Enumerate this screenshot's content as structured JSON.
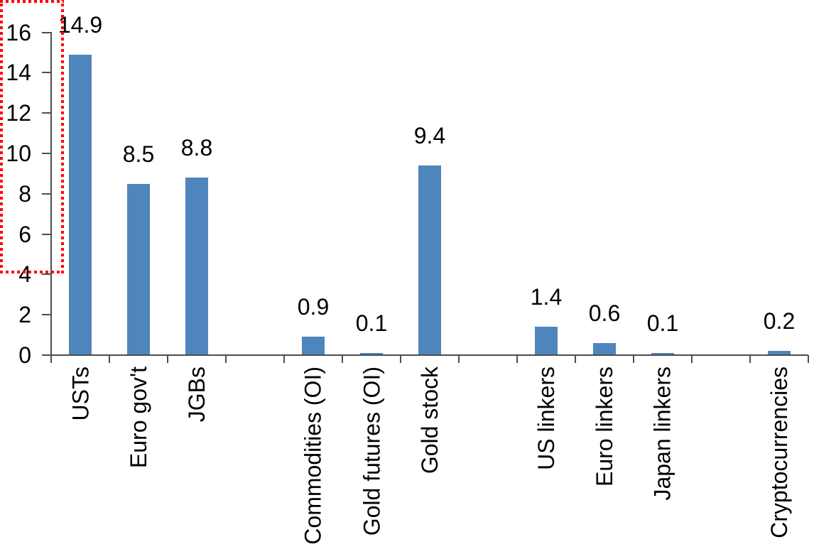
{
  "chart_data": {
    "type": "bar",
    "title": "",
    "xlabel": "",
    "ylabel": "",
    "categories": [
      "USTs",
      "Euro gov't",
      "JGBs",
      "",
      "Commodities (OI)",
      "Gold futures (OI)",
      "Gold stock",
      "",
      "US linkers",
      "Euro linkers",
      "Japan linkers",
      "",
      "Cryptocurrencies"
    ],
    "values": [
      14.9,
      8.5,
      8.8,
      null,
      0.9,
      0.1,
      9.4,
      null,
      1.4,
      0.6,
      0.1,
      null,
      0.2
    ],
    "data_labels": [
      "14.9",
      "8.5",
      "8.8",
      "",
      "0.9",
      "0.1",
      "9.4",
      "",
      "1.4",
      "0.6",
      "0.1",
      "",
      "0.2"
    ],
    "ylim": [
      0,
      16
    ],
    "yticks": [
      0,
      2,
      4,
      6,
      8,
      10,
      12,
      14,
      16
    ],
    "grid": false,
    "legend": false,
    "colors": {
      "bar": "#4e85bd",
      "axis": "#4d4d4d",
      "text": "#000000",
      "background": "#ffffff",
      "highlight": "#ff0000"
    },
    "highlight": {
      "category": "Cryptocurrencies",
      "style": "red-dotted-box"
    }
  }
}
